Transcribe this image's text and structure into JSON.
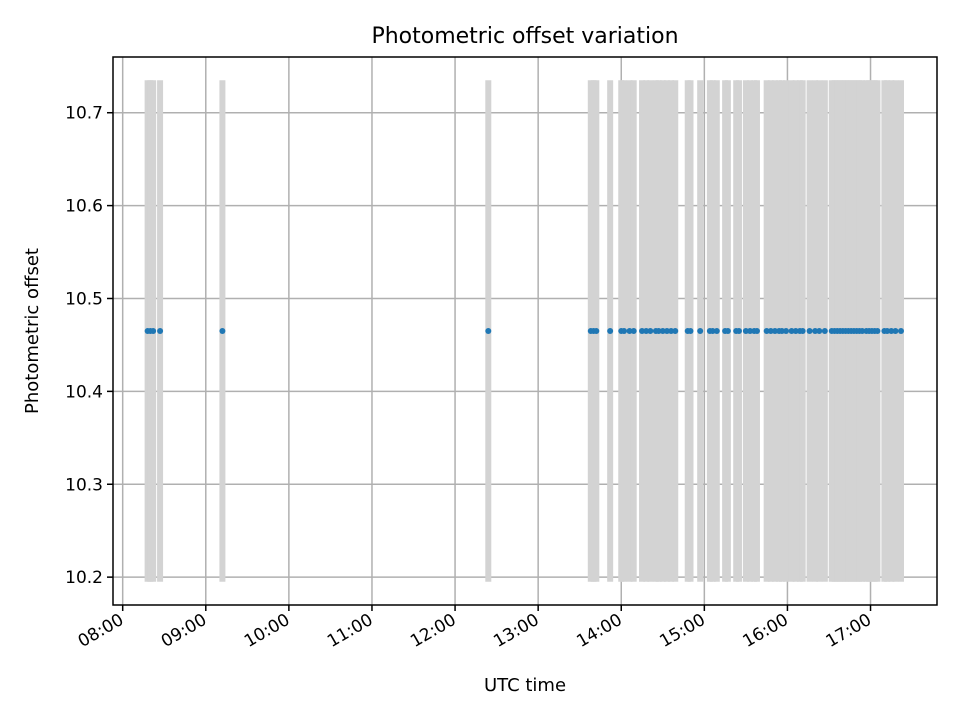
{
  "chart_data": {
    "type": "scatter",
    "title": "Photometric offset variation",
    "xlabel": "UTC time",
    "ylabel": "Photometric offset",
    "x_ticks": [
      "08:00",
      "09:00",
      "10:00",
      "11:00",
      "12:00",
      "13:00",
      "14:00",
      "15:00",
      "16:00",
      "17:00"
    ],
    "y_ticks": [
      "10.2",
      "10.3",
      "10.4",
      "10.5",
      "10.6",
      "10.7"
    ],
    "xlim": [
      "07:53",
      "17:48"
    ],
    "ylim": [
      10.17,
      10.76
    ],
    "grid": true,
    "colors": {
      "points": "#1f77b4",
      "error_bars": "#d3d3d3"
    },
    "error_bar": {
      "low": 10.195,
      "high": 10.735
    },
    "series": [
      {
        "y_value": 10.465,
        "x": [
          "08:18",
          "08:20",
          "08:22",
          "08:27",
          "09:12",
          "12:24",
          "13:38",
          "13:40",
          "13:42",
          "13:52",
          "14:00",
          "14:02",
          "14:06",
          "14:09",
          "14:15",
          "14:18",
          "14:21",
          "14:25",
          "14:27",
          "14:30",
          "14:33",
          "14:36",
          "14:39",
          "14:48",
          "14:50",
          "14:57",
          "15:04",
          "15:06",
          "15:09",
          "15:15",
          "15:17",
          "15:23",
          "15:25",
          "15:30",
          "15:33",
          "15:36",
          "15:38",
          "15:45",
          "15:48",
          "15:51",
          "15:54",
          "15:56",
          "15:59",
          "16:03",
          "16:06",
          "16:09",
          "16:11",
          "16:16",
          "16:20",
          "16:23",
          "16:27",
          "16:32",
          "16:34",
          "16:36",
          "16:38",
          "16:40",
          "16:42",
          "16:44",
          "16:46",
          "16:48",
          "16:50",
          "16:52",
          "16:54",
          "16:57",
          "16:59",
          "17:01",
          "17:03",
          "17:05",
          "17:10",
          "17:12",
          "17:15",
          "17:18",
          "17:22"
        ]
      }
    ]
  }
}
